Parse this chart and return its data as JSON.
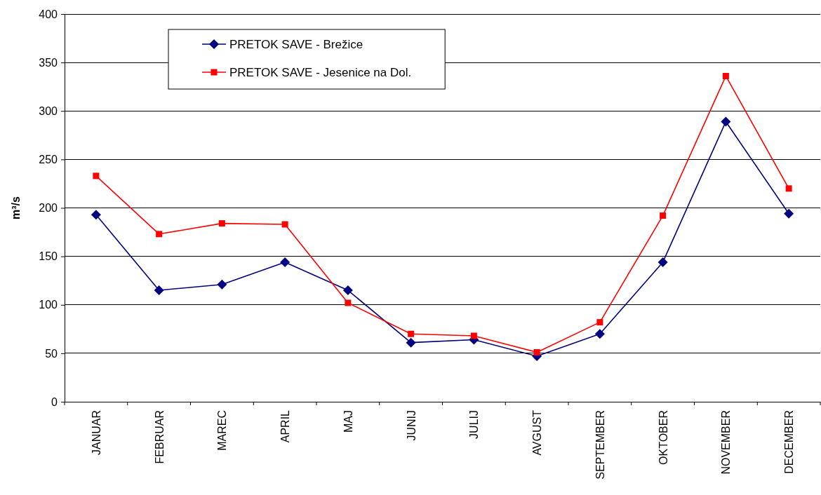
{
  "chart_data": {
    "type": "line",
    "ylabel": "m³/s",
    "categories": [
      "JANUAR",
      "FEBRUAR",
      "MAREC",
      "APRIL",
      "MAJ",
      "JUNIJ",
      "JULIJ",
      "AVGUST",
      "SEPTEMBER",
      "OKTOBER",
      "NOVEMBER",
      "DECEMBER"
    ],
    "series": [
      {
        "name": "PRETOK SAVE - Brežice",
        "color": "#000080",
        "marker": "diamond",
        "values": [
          193,
          115,
          121,
          144,
          115,
          61,
          64,
          47,
          70,
          144,
          289,
          194
        ]
      },
      {
        "name": "PRETOK SAVE - Jesenice na Dol.",
        "color": "#ff0000",
        "marker": "square",
        "values": [
          233,
          173,
          184,
          183,
          102,
          70,
          68,
          51,
          82,
          192,
          336,
          220
        ]
      }
    ],
    "ylim": [
      0,
      400
    ],
    "yticks": [
      0,
      50,
      100,
      150,
      200,
      250,
      300,
      350,
      400
    ],
    "grid": "y",
    "legend": "top left",
    "line_style": "solid"
  }
}
